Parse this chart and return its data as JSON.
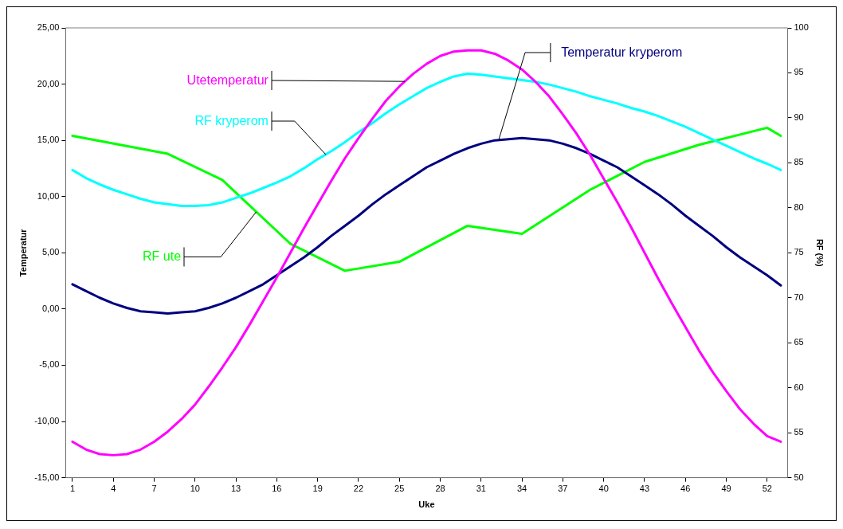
{
  "chart_data": {
    "type": "line",
    "xlabel": "Uke",
    "ylabel": "Temperatur",
    "y2label": "RF (%)",
    "x": [
      1,
      2,
      3,
      4,
      5,
      6,
      7,
      8,
      9,
      10,
      11,
      12,
      13,
      14,
      15,
      16,
      17,
      18,
      19,
      20,
      21,
      22,
      23,
      24,
      25,
      26,
      27,
      28,
      29,
      30,
      31,
      32,
      33,
      34,
      35,
      36,
      37,
      38,
      39,
      40,
      41,
      42,
      43,
      44,
      45,
      46,
      47,
      48,
      49,
      50,
      51,
      52,
      53
    ],
    "xlim": [
      0.5,
      53.5
    ],
    "xticks": [
      1,
      4,
      7,
      10,
      13,
      16,
      19,
      22,
      25,
      28,
      31,
      34,
      37,
      40,
      43,
      46,
      49,
      52
    ],
    "ylim": [
      -15,
      25
    ],
    "yticks": [
      {
        "value": -15,
        "label": "-15,00"
      },
      {
        "value": -10,
        "label": "-10,00"
      },
      {
        "value": -5,
        "label": "-5,00"
      },
      {
        "value": 0,
        "label": "0,00"
      },
      {
        "value": 5,
        "label": "5,00"
      },
      {
        "value": 10,
        "label": "10,00"
      },
      {
        "value": 15,
        "label": "15,00"
      },
      {
        "value": 20,
        "label": "20,00"
      },
      {
        "value": 25,
        "label": "25,00"
      }
    ],
    "y2lim": [
      50,
      100
    ],
    "y2ticks": [
      50,
      55,
      60,
      65,
      70,
      75,
      80,
      85,
      90,
      95,
      100
    ],
    "grid": false,
    "legend": false,
    "marker": "none",
    "line_style": "solid",
    "series": [
      {
        "name": "Utetemperatur",
        "color": "#ff00ff",
        "values": [
          -11.8,
          -12.5,
          -12.9,
          -13,
          -12.9,
          -12.5,
          -11.8,
          -10.9,
          -9.8,
          -8.5,
          -6.9,
          -5.2,
          -3.4,
          -1.4,
          0.7,
          2.8,
          5.0,
          7.2,
          9.3,
          11.4,
          13.4,
          15.2,
          16.9,
          18.5,
          19.8,
          20.9,
          21.8,
          22.5,
          22.9,
          23.0,
          23.0,
          22.7,
          22.1,
          21.3,
          20.2,
          18.9,
          17.3,
          15.6,
          13.7,
          11.6,
          9.5,
          7.3,
          5.0,
          2.7,
          0.5,
          -1.6,
          -3.7,
          -5.6,
          -7.3,
          -8.9,
          -10.2,
          -11.3,
          -11.8
        ]
      },
      {
        "name": "Temperatur kryperom",
        "color": "#000080",
        "values": [
          2.2,
          1.6,
          1.0,
          0.5,
          0.1,
          -0.2,
          -0.3,
          -0.4,
          -0.3,
          -0.2,
          0.1,
          0.5,
          1.0,
          1.6,
          2.2,
          3.0,
          3.8,
          4.6,
          5.5,
          6.5,
          7.4,
          8.3,
          9.3,
          10.2,
          11.0,
          11.8,
          12.6,
          13.2,
          13.8,
          14.3,
          14.7,
          15.0,
          15.1,
          15.2,
          15.1,
          15.0,
          14.7,
          14.3,
          13.8,
          13.2,
          12.6,
          11.8,
          11.0,
          10.2,
          9.3,
          8.3,
          7.4,
          6.5,
          5.5,
          4.6,
          3.8,
          3.0,
          2.1
        ]
      },
      {
        "name": "RF kryperom",
        "color": "#00ffff",
        "axis": "y2",
        "values": [
          84.2,
          83.3,
          82.6,
          82.0,
          81.5,
          81.0,
          80.6,
          80.4,
          80.2,
          80.2,
          80.3,
          80.6,
          81.1,
          81.6,
          82.2,
          82.8,
          83.5,
          84.4,
          85.4,
          86.3,
          87.3,
          88.4,
          89.4,
          90.5,
          91.5,
          92.4,
          93.3,
          94.0,
          94.6,
          94.9,
          94.8,
          94.6,
          94.4,
          94.2,
          94.0,
          93.7,
          93.3,
          92.9,
          92.4,
          92.0,
          91.6,
          91.1,
          90.7,
          90.2,
          89.6,
          89.0,
          88.3,
          87.6,
          86.9,
          86.2,
          85.5,
          84.9,
          84.2
        ]
      },
      {
        "name": "RF ute",
        "color": "#00ff00",
        "axis": "y2",
        "x": [
          1,
          8,
          12,
          17,
          21,
          25,
          30,
          34,
          39,
          43,
          47,
          52,
          53
        ],
        "values": [
          88.0,
          86.0,
          83.1,
          76.0,
          73.0,
          74.0,
          78.0,
          77.1,
          82.0,
          85.1,
          87.0,
          88.9,
          88.0
        ]
      }
    ]
  }
}
